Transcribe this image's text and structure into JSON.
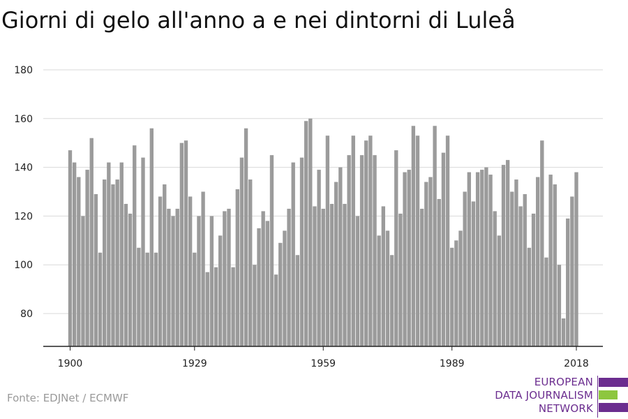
{
  "title": "Giorni di gelo all'anno a e nei dintorni di Luleå",
  "source": "Fonte: EDJNet / ECMWF",
  "logo": {
    "lines": [
      "EUROPEAN",
      "DATA JOURNALISM",
      "NETWORK"
    ],
    "colors": {
      "purple": "#6b2d8f",
      "green": "#8dc63f"
    }
  },
  "colors": {
    "bar": "#9b9b9b",
    "grid": "#d9d9d9",
    "axis": "#222222"
  },
  "chart_data": {
    "type": "bar",
    "x_start": 1900,
    "x_end": 2018,
    "ylim": [
      67,
      183
    ],
    "yticks": [
      80,
      100,
      120,
      140,
      160,
      180
    ],
    "xticks": [
      1900,
      1929,
      1959,
      1989,
      2018
    ],
    "grid": true,
    "values": [
      147,
      142,
      136,
      120,
      139,
      152,
      129,
      105,
      135,
      142,
      133,
      135,
      142,
      125,
      121,
      149,
      107,
      144,
      105,
      156,
      105,
      128,
      133,
      123,
      120,
      123,
      150,
      151,
      128,
      105,
      120,
      130,
      97,
      120,
      99,
      112,
      122,
      123,
      99,
      131,
      144,
      156,
      135,
      100,
      115,
      122,
      118,
      145,
      96,
      109,
      114,
      123,
      142,
      104,
      144,
      159,
      160,
      124,
      139,
      123,
      153,
      125,
      134,
      140,
      125,
      145,
      153,
      120,
      145,
      151,
      153,
      145,
      112,
      124,
      114,
      104,
      147,
      121,
      138,
      139,
      157,
      153,
      123,
      134,
      136,
      157,
      127,
      146,
      153,
      107,
      110,
      114,
      130,
      138,
      126,
      138,
      139,
      140,
      137,
      122,
      112,
      141,
      143,
      130,
      135,
      124,
      129,
      107,
      121,
      136,
      151,
      103,
      137,
      133,
      100,
      78,
      119,
      128,
      138
    ]
  }
}
